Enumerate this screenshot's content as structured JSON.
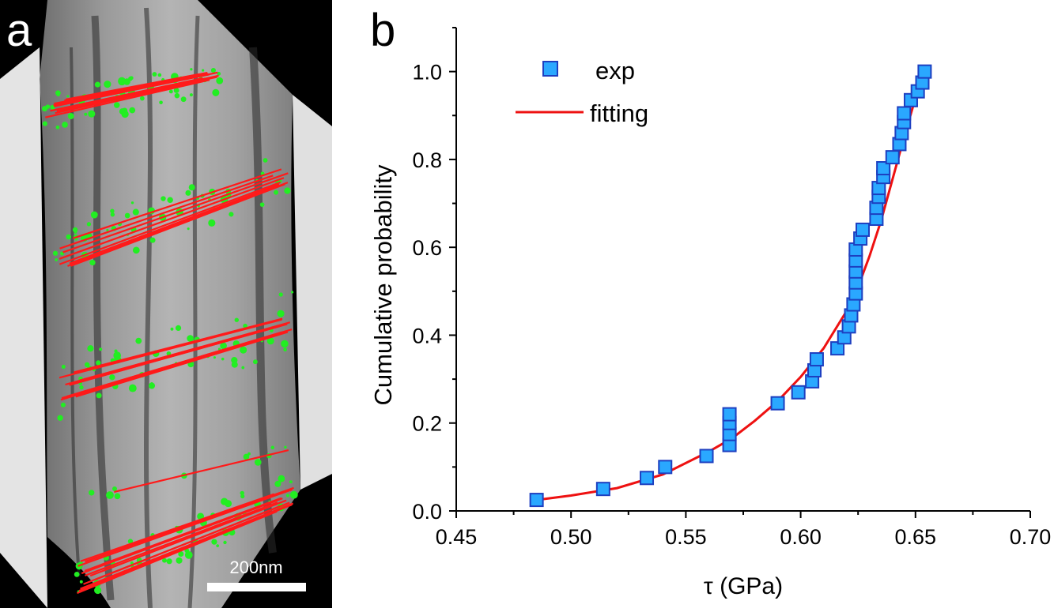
{
  "panel_a": {
    "label": "a",
    "scale_bar_label": "200nm"
  },
  "panel_b": {
    "label": "b"
  },
  "colors": {
    "marker_fill": "#2aa8ff",
    "marker_edge": "#1d3fc0",
    "fit_line": "#ee1111",
    "annotation_line": "#ff1a1a",
    "annotation_speckle": "#22ee22"
  },
  "chart_data": {
    "type": "scatter",
    "xlabel": "τ (GPa)",
    "ylabel": "Cumulative probability",
    "xlim": [
      0.45,
      0.7
    ],
    "ylim": [
      0.0,
      1.1
    ],
    "xticks": [
      "0.45",
      "0.50",
      "0.55",
      "0.60",
      "0.65",
      "0.70"
    ],
    "yticks": [
      "0.0",
      "0.2",
      "0.4",
      "0.6",
      "0.8",
      "1.0"
    ],
    "grid": false,
    "legend_position": "top-left",
    "series": [
      {
        "name": "exp",
        "kind": "markers",
        "marker": "square",
        "points": [
          [
            0.485,
            0.025
          ],
          [
            0.514,
            0.05
          ],
          [
            0.533,
            0.075
          ],
          [
            0.541,
            0.1
          ],
          [
            0.559,
            0.125
          ],
          [
            0.569,
            0.15
          ],
          [
            0.569,
            0.175
          ],
          [
            0.569,
            0.2
          ],
          [
            0.569,
            0.22
          ],
          [
            0.59,
            0.245
          ],
          [
            0.599,
            0.27
          ],
          [
            0.605,
            0.295
          ],
          [
            0.606,
            0.32
          ],
          [
            0.607,
            0.345
          ],
          [
            0.616,
            0.37
          ],
          [
            0.619,
            0.395
          ],
          [
            0.621,
            0.42
          ],
          [
            0.622,
            0.445
          ],
          [
            0.623,
            0.47
          ],
          [
            0.624,
            0.495
          ],
          [
            0.624,
            0.52
          ],
          [
            0.624,
            0.545
          ],
          [
            0.624,
            0.57
          ],
          [
            0.624,
            0.595
          ],
          [
            0.626,
            0.62
          ],
          [
            0.627,
            0.64
          ],
          [
            0.633,
            0.665
          ],
          [
            0.633,
            0.69
          ],
          [
            0.634,
            0.715
          ],
          [
            0.634,
            0.735
          ],
          [
            0.636,
            0.76
          ],
          [
            0.636,
            0.78
          ],
          [
            0.64,
            0.805
          ],
          [
            0.643,
            0.835
          ],
          [
            0.644,
            0.86
          ],
          [
            0.645,
            0.885
          ],
          [
            0.645,
            0.905
          ],
          [
            0.648,
            0.935
          ],
          [
            0.651,
            0.955
          ],
          [
            0.653,
            0.975
          ],
          [
            0.654,
            1.0
          ]
        ]
      },
      {
        "name": "fitting",
        "kind": "line",
        "points": [
          [
            0.485,
            0.025
          ],
          [
            0.5,
            0.035
          ],
          [
            0.52,
            0.052
          ],
          [
            0.54,
            0.083
          ],
          [
            0.56,
            0.135
          ],
          [
            0.57,
            0.165
          ],
          [
            0.58,
            0.205
          ],
          [
            0.59,
            0.25
          ],
          [
            0.6,
            0.305
          ],
          [
            0.61,
            0.37
          ],
          [
            0.62,
            0.455
          ],
          [
            0.625,
            0.51
          ],
          [
            0.63,
            0.58
          ],
          [
            0.635,
            0.66
          ],
          [
            0.64,
            0.755
          ],
          [
            0.645,
            0.85
          ],
          [
            0.65,
            0.94
          ],
          [
            0.654,
            1.01
          ]
        ]
      }
    ]
  }
}
